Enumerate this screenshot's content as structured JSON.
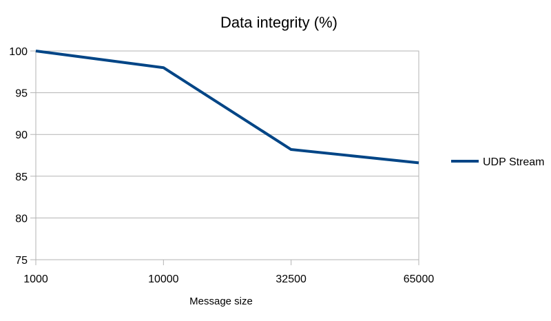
{
  "chart_data": {
    "type": "line",
    "title": "Data integrity (%)",
    "xlabel": "Message size",
    "ylabel": "",
    "categories": [
      "1000",
      "10000",
      "32500",
      "65000"
    ],
    "series": [
      {
        "name": "UDP Stream",
        "values": [
          100,
          98,
          88.2,
          86.6
        ],
        "color": "#004586"
      }
    ],
    "ylim": [
      75,
      100
    ],
    "yticks": [
      75,
      80,
      85,
      90,
      95,
      100
    ],
    "grid": true,
    "legend_position": "right"
  }
}
